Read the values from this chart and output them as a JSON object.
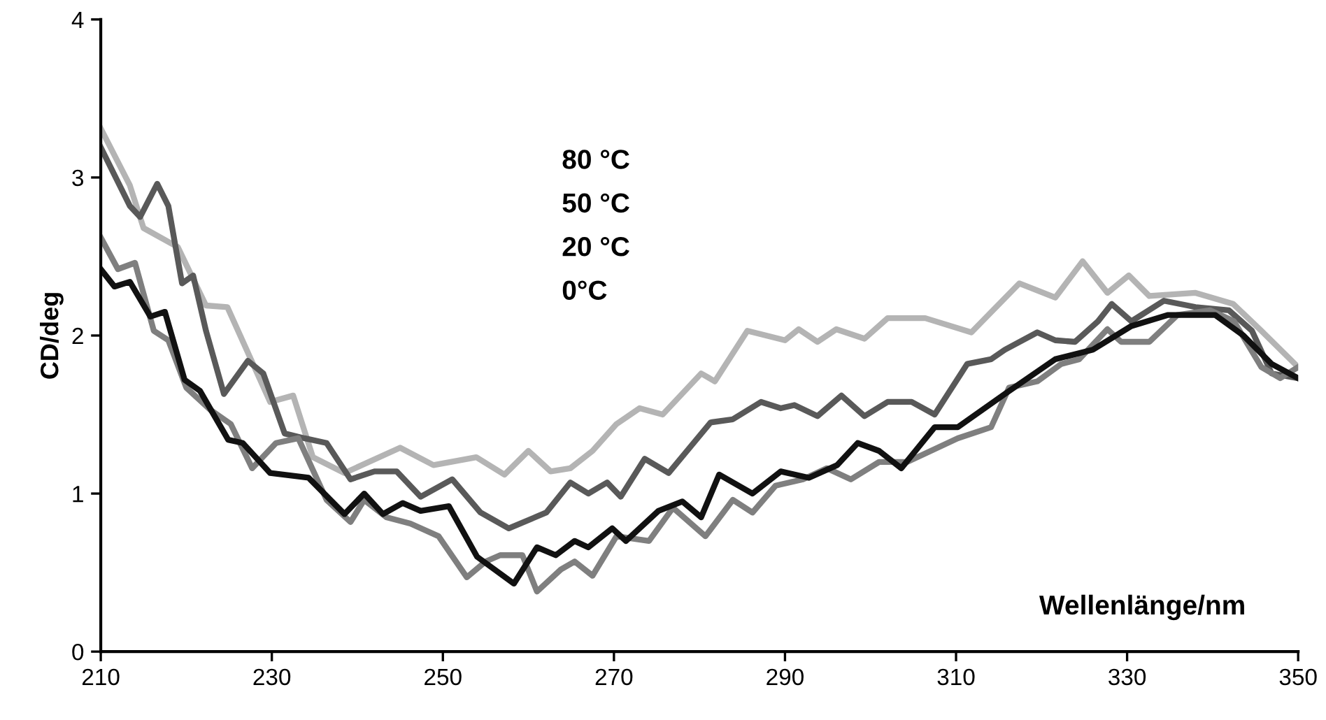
{
  "chart_data": {
    "type": "line",
    "xlabel": "Wellenlänge/nm",
    "ylabel": "CD/deg",
    "annotations": [
      "80 °C",
      "50 °C",
      "20 °C",
      "0°C"
    ],
    "xlim": [
      210,
      350
    ],
    "ylim": [
      0,
      4
    ],
    "xticks": [
      210,
      230,
      250,
      270,
      290,
      310,
      330,
      350
    ],
    "yticks": [
      0,
      1,
      2,
      3,
      4
    ],
    "grid": false,
    "marker": "none",
    "line_style": "solid",
    "series": [
      {
        "color": "#b4b4b4",
        "x": [
          210,
          213.4,
          215,
          219,
          222.3,
          224.8,
          229.8,
          232.5,
          234.8,
          238.5,
          245,
          248.9,
          253.9,
          257.2,
          260,
          262.6,
          264.9,
          267.5,
          270.3,
          273,
          275.7,
          280.2,
          281.8,
          285.6,
          290,
          291.6,
          293.8,
          296,
          299.3,
          302,
          306.4,
          311.8,
          317.4,
          321.6,
          324.8,
          327.7,
          330.2,
          332.6,
          338,
          342.4,
          345.7,
          350
        ],
        "values": [
          3.31,
          2.95,
          2.68,
          2.56,
          2.19,
          2.18,
          1.58,
          1.62,
          1.23,
          1.13,
          1.29,
          1.18,
          1.23,
          1.12,
          1.27,
          1.14,
          1.16,
          1.27,
          1.44,
          1.54,
          1.5,
          1.76,
          1.71,
          2.03,
          1.97,
          2.04,
          1.96,
          2.04,
          1.98,
          2.11,
          2.11,
          2.02,
          2.33,
          2.24,
          2.47,
          2.27,
          2.38,
          2.25,
          2.27,
          2.2,
          2.03,
          1.8
        ]
      },
      {
        "color": "#595959",
        "x": [
          210,
          213.4,
          214.6,
          216.6,
          217.9,
          219.5,
          220.8,
          222.3,
          224.4,
          227.2,
          229,
          231.5,
          233.8,
          236.4,
          239.2,
          242,
          244.6,
          247.4,
          251.1,
          254.4,
          257.7,
          262.1,
          264.9,
          267,
          269.2,
          270.8,
          273.6,
          276.4,
          281.3,
          283.9,
          287.2,
          289.5,
          291.1,
          293.8,
          296.6,
          299.3,
          302,
          304.8,
          307.5,
          311.3,
          314.1,
          315.7,
          319.5,
          321.6,
          323.9,
          326.6,
          328.2,
          330.5,
          334.3,
          338,
          341.9,
          344.6,
          346.9,
          350
        ],
        "values": [
          3.19,
          2.82,
          2.75,
          2.96,
          2.82,
          2.33,
          2.38,
          2.03,
          1.63,
          1.84,
          1.76,
          1.38,
          1.35,
          1.32,
          1.09,
          1.14,
          1.14,
          0.98,
          1.09,
          0.88,
          0.78,
          0.88,
          1.07,
          1.0,
          1.07,
          0.98,
          1.22,
          1.13,
          1.45,
          1.47,
          1.58,
          1.54,
          1.56,
          1.49,
          1.62,
          1.49,
          1.58,
          1.58,
          1.5,
          1.82,
          1.85,
          1.91,
          2.02,
          1.97,
          1.96,
          2.09,
          2.2,
          2.09,
          2.22,
          2.18,
          2.16,
          2.03,
          1.76,
          1.73
        ]
      },
      {
        "color": "#7f7f7f",
        "x": [
          210,
          212,
          214,
          216.2,
          217.9,
          220,
          222.8,
          225.2,
          227.7,
          230.5,
          233.1,
          236.4,
          239.2,
          240.8,
          243.4,
          246.2,
          249.5,
          252.8,
          255,
          256.7,
          259.3,
          261,
          263.8,
          265.4,
          267.5,
          270.3,
          274.1,
          276.9,
          280.7,
          283.9,
          286.2,
          288.9,
          292.1,
          294.9,
          297.7,
          301,
          304.3,
          310.2,
          314.1,
          316.2,
          319.5,
          322.3,
          324.4,
          327.7,
          329.3,
          332.6,
          335.9,
          339.7,
          342.5,
          345.7,
          347.9,
          350
        ],
        "values": [
          2.62,
          2.42,
          2.46,
          2.03,
          1.97,
          1.67,
          1.53,
          1.44,
          1.16,
          1.32,
          1.35,
          0.96,
          0.82,
          0.96,
          0.85,
          0.81,
          0.73,
          0.47,
          0.57,
          0.61,
          0.61,
          0.38,
          0.52,
          0.57,
          0.48,
          0.73,
          0.7,
          0.91,
          0.73,
          0.96,
          0.88,
          1.05,
          1.09,
          1.16,
          1.09,
          1.2,
          1.2,
          1.35,
          1.42,
          1.67,
          1.71,
          1.82,
          1.85,
          2.04,
          1.96,
          1.96,
          2.13,
          2.16,
          2.09,
          1.8,
          1.73,
          1.8
        ]
      },
      {
        "color": "#111111",
        "x": [
          210,
          211.6,
          213.4,
          215.8,
          217.5,
          219.8,
          221.6,
          224.9,
          226.6,
          229.8,
          234.3,
          238.5,
          240.8,
          243,
          245.3,
          247.4,
          250.7,
          254,
          258.3,
          261,
          263.2,
          265.4,
          267,
          269.8,
          271.4,
          275.2,
          278,
          280.2,
          282.3,
          286.2,
          289.5,
          292.8,
          296.1,
          298.5,
          301,
          303.6,
          307.5,
          310.2,
          315.7,
          321.6,
          326,
          330.5,
          334.8,
          340.3,
          343.6,
          346.9,
          350
        ],
        "values": [
          2.42,
          2.31,
          2.34,
          2.12,
          2.15,
          1.72,
          1.65,
          1.34,
          1.32,
          1.13,
          1.1,
          0.87,
          1.0,
          0.87,
          0.94,
          0.89,
          0.92,
          0.6,
          0.43,
          0.66,
          0.61,
          0.7,
          0.66,
          0.78,
          0.7,
          0.89,
          0.95,
          0.85,
          1.12,
          1.0,
          1.14,
          1.1,
          1.18,
          1.32,
          1.27,
          1.16,
          1.42,
          1.42,
          1.63,
          1.85,
          1.91,
          2.06,
          2.13,
          2.13,
          2.0,
          1.82,
          1.73
        ]
      }
    ]
  }
}
